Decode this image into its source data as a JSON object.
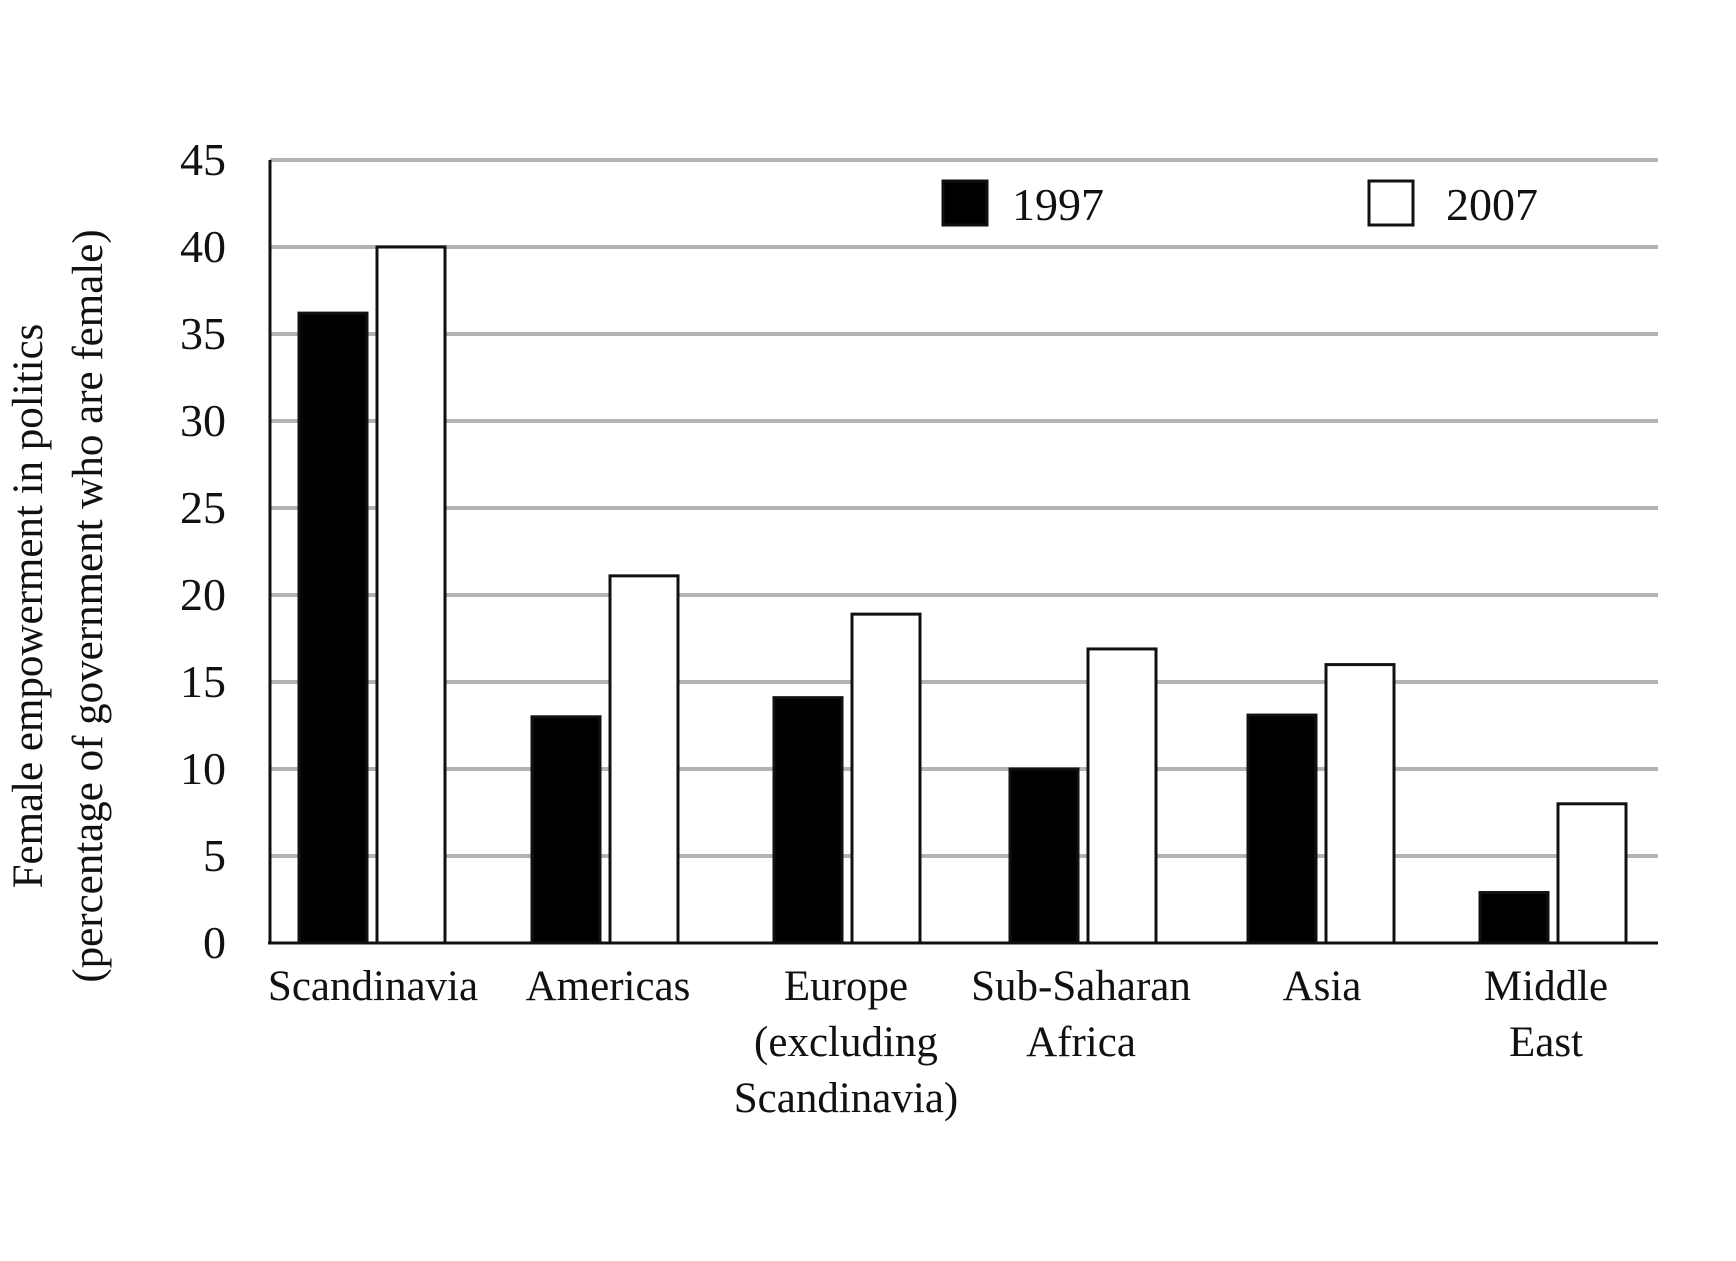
{
  "chart_data": {
    "type": "bar",
    "title": "",
    "ylabel_lines": [
      "Female empowerment in politics",
      "(percentage of government who are female)"
    ],
    "xlabel": "",
    "categories": [
      "Scandinavia",
      "Americas",
      "Europe (excluding Scandinavia)",
      "Sub-Saharan Africa",
      "Asia",
      "Middle East"
    ],
    "category_lines": [
      [
        "Scandinavia"
      ],
      [
        "Americas"
      ],
      [
        "Europe",
        "(excluding",
        "Scandinavia)"
      ],
      [
        "Sub-Saharan",
        "Africa"
      ],
      [
        "Asia"
      ],
      [
        "Middle",
        "East"
      ]
    ],
    "series": [
      {
        "name": "1997",
        "values": [
          36.2,
          13.0,
          14.1,
          10.0,
          13.1,
          2.9
        ],
        "color": "#000000"
      },
      {
        "name": "2007",
        "values": [
          40.0,
          21.1,
          18.9,
          16.9,
          16.0,
          8.0
        ],
        "color": "#ffffff"
      }
    ],
    "ylim": [
      0,
      45
    ],
    "yticks": [
      0,
      5,
      10,
      15,
      20,
      25,
      30,
      35,
      40,
      45
    ],
    "grid": true,
    "legend_position": "top-right",
    "bar_stroke": "#111111",
    "grid_color": "#b3b3b3"
  }
}
